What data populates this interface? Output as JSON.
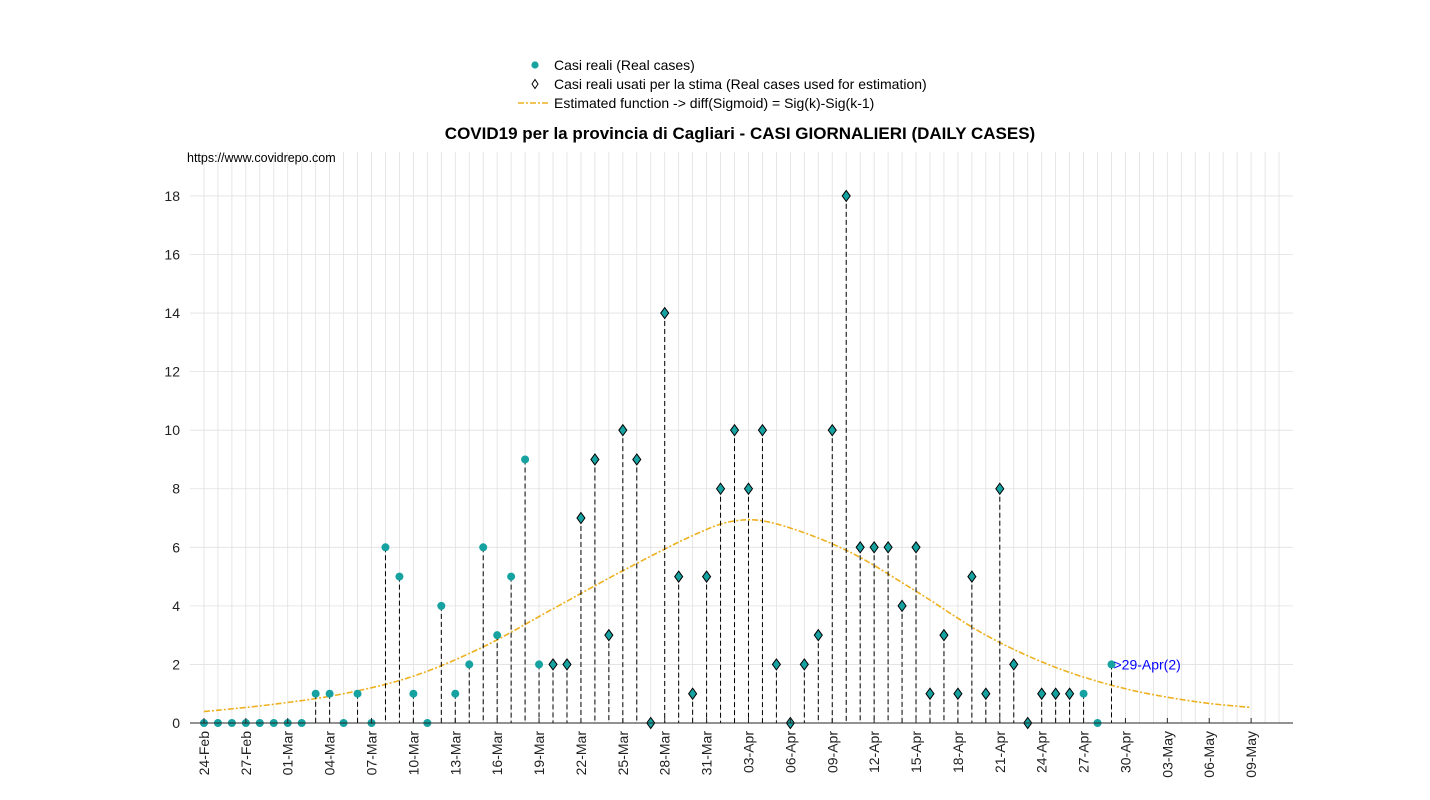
{
  "watermark": "https://www.covidrepo.com",
  "colors": {
    "real_marker": "#17a2a2",
    "used_marker": "#17a2a2",
    "fit_line": "#edb120",
    "annotation": "#0000ff",
    "grid": "#e0e0e0",
    "stem": "#000000"
  },
  "legend": {
    "real": "Casi reali (Real cases)",
    "used": "Casi reali usati per la stima (Real cases used for estimation)",
    "fit": "Estimated function -> diff(Sigmoid) = Sig(k)-Sig(k-1)"
  },
  "chart_data": {
    "type": "scatter",
    "title": "COVID19 per la provincia di Cagliari - CASI GIORNALIERI (DAILY CASES)",
    "xlabel": "",
    "ylabel": "",
    "ylim": [
      0,
      19.5
    ],
    "yticks": [
      0,
      2,
      4,
      6,
      8,
      10,
      12,
      14,
      16,
      18
    ],
    "xlim": [
      "2020-02-23",
      "2020-05-12"
    ],
    "x_tick_labels": [
      "24-Feb",
      "27-Feb",
      "01-Mar",
      "04-Mar",
      "07-Mar",
      "10-Mar",
      "13-Mar",
      "16-Mar",
      "19-Mar",
      "22-Mar",
      "25-Mar",
      "28-Mar",
      "31-Mar",
      "03-Apr",
      "06-Apr",
      "09-Apr",
      "12-Apr",
      "15-Apr",
      "18-Apr",
      "21-Apr",
      "24-Apr",
      "27-Apr",
      "30-Apr",
      "03-May",
      "06-May",
      "09-May"
    ],
    "grid": true,
    "series": [
      {
        "name": "Casi reali (Real cases)",
        "marker": "circle",
        "x": [
          "2020-02-24",
          "2020-02-25",
          "2020-02-26",
          "2020-02-27",
          "2020-02-28",
          "2020-02-29",
          "2020-03-01",
          "2020-03-02",
          "2020-03-03",
          "2020-03-04",
          "2020-03-05",
          "2020-03-06",
          "2020-03-07",
          "2020-03-08",
          "2020-03-09",
          "2020-03-10",
          "2020-03-11",
          "2020-03-12",
          "2020-03-13",
          "2020-03-14",
          "2020-03-15",
          "2020-03-16",
          "2020-03-17",
          "2020-03-18",
          "2020-03-19",
          "2020-04-27",
          "2020-04-28",
          "2020-04-29"
        ],
        "values": [
          0,
          0,
          0,
          0,
          0,
          0,
          0,
          0,
          1,
          1,
          0,
          1,
          0,
          6,
          5,
          1,
          0,
          4,
          1,
          2,
          6,
          3,
          5,
          9,
          2,
          1,
          0,
          2
        ]
      },
      {
        "name": "Casi reali usati per la stima (Real cases used for estimation)",
        "marker": "diamond",
        "x": [
          "2020-03-20",
          "2020-03-21",
          "2020-03-22",
          "2020-03-23",
          "2020-03-24",
          "2020-03-25",
          "2020-03-26",
          "2020-03-27",
          "2020-03-28",
          "2020-03-29",
          "2020-03-30",
          "2020-03-31",
          "2020-04-01",
          "2020-04-02",
          "2020-04-03",
          "2020-04-04",
          "2020-04-05",
          "2020-04-06",
          "2020-04-07",
          "2020-04-08",
          "2020-04-09",
          "2020-04-10",
          "2020-04-11",
          "2020-04-12",
          "2020-04-13",
          "2020-04-14",
          "2020-04-15",
          "2020-04-16",
          "2020-04-17",
          "2020-04-18",
          "2020-04-19",
          "2020-04-20",
          "2020-04-21",
          "2020-04-22",
          "2020-04-23",
          "2020-04-24",
          "2020-04-25",
          "2020-04-26"
        ],
        "values": [
          2,
          2,
          7,
          9,
          3,
          10,
          9,
          0,
          14,
          5,
          1,
          5,
          8,
          10,
          8,
          10,
          2,
          0,
          2,
          3,
          10,
          18,
          6,
          6,
          6,
          4,
          6,
          1,
          3,
          1,
          5,
          1,
          8,
          2,
          0,
          1,
          1,
          1
        ]
      },
      {
        "name": "Estimated function -> diff(Sigmoid) = Sig(k)-Sig(k-1)",
        "type": "line",
        "x": [
          "2020-02-24",
          "2020-02-29",
          "2020-03-05",
          "2020-03-10",
          "2020-03-15",
          "2020-03-20",
          "2020-03-25",
          "2020-03-30",
          "2020-04-02",
          "2020-04-05",
          "2020-04-10",
          "2020-04-15",
          "2020-04-20",
          "2020-04-25",
          "2020-04-30",
          "2020-05-05",
          "2020-05-09"
        ],
        "values": [
          0.39,
          0.64,
          1.0,
          1.6,
          2.6,
          3.9,
          5.2,
          6.4,
          6.9,
          6.8,
          5.9,
          4.5,
          3.0,
          1.9,
          1.17,
          0.73,
          0.53
        ]
      }
    ],
    "annotations": [
      {
        "text": ">29-Apr(2)",
        "x": "2020-04-29",
        "y": 2
      }
    ]
  }
}
